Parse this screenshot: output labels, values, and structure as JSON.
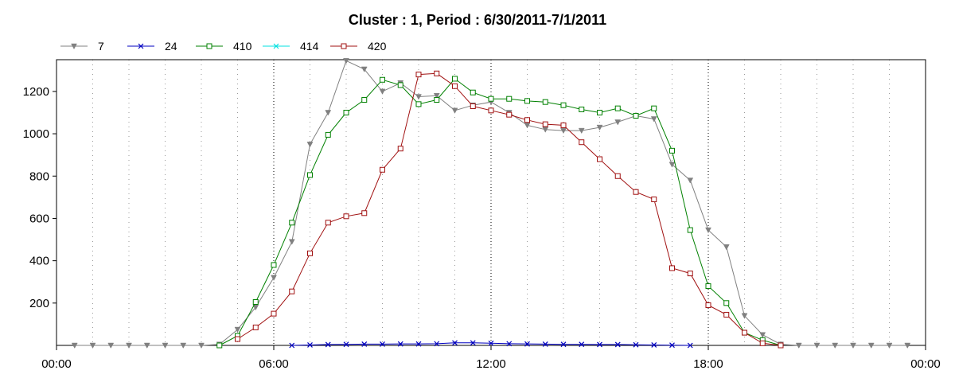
{
  "chart_data": {
    "type": "line",
    "title": "Cluster : 1, Period : 6/30/2011-7/1/2011",
    "xlabel": "",
    "ylabel": "",
    "xlim": [
      0,
      24
    ],
    "ylim": [
      0,
      1350
    ],
    "x_unit": "hours",
    "x_ticks": [
      {
        "value": 0,
        "label": "00:00"
      },
      {
        "value": 6,
        "label": "06:00"
      },
      {
        "value": 12,
        "label": "12:00"
      },
      {
        "value": 18,
        "label": "18:00"
      },
      {
        "value": 24,
        "label": "00:00"
      }
    ],
    "y_ticks": [
      200,
      400,
      600,
      800,
      1000,
      1200
    ],
    "grid": {
      "vertical_minor_dotted": true,
      "vertical_major_dotted": true,
      "horizontal": false
    },
    "legend_position": "top-left",
    "colors": {
      "7": "#808080",
      "24": "#0000c0",
      "410": "#008000",
      "414": "#00e0e0",
      "420": "#a01010"
    },
    "series": [
      {
        "name": "7",
        "marker": "triangle-down",
        "points": [
          [
            0.5,
            0
          ],
          [
            1.0,
            0
          ],
          [
            1.5,
            0
          ],
          [
            2.0,
            0
          ],
          [
            2.5,
            0
          ],
          [
            3.0,
            0
          ],
          [
            3.5,
            0
          ],
          [
            4.0,
            0
          ],
          [
            4.5,
            5
          ],
          [
            5.0,
            75
          ],
          [
            5.5,
            180
          ],
          [
            6.0,
            320
          ],
          [
            6.5,
            490
          ],
          [
            7.0,
            950
          ],
          [
            7.5,
            1100
          ],
          [
            8.0,
            1345
          ],
          [
            8.5,
            1305
          ],
          [
            9.0,
            1200
          ],
          [
            9.5,
            1240
          ],
          [
            10.0,
            1175
          ],
          [
            10.5,
            1180
          ],
          [
            11.0,
            1110
          ],
          [
            11.5,
            1135
          ],
          [
            12.0,
            1150
          ],
          [
            12.5,
            1100
          ],
          [
            13.0,
            1040
          ],
          [
            13.5,
            1020
          ],
          [
            14.0,
            1015
          ],
          [
            14.5,
            1015
          ],
          [
            15.0,
            1030
          ],
          [
            15.5,
            1055
          ],
          [
            16.0,
            1085
          ],
          [
            16.5,
            1070
          ],
          [
            17.0,
            855
          ],
          [
            17.5,
            780
          ],
          [
            18.0,
            545
          ],
          [
            18.5,
            465
          ],
          [
            19.0,
            140
          ],
          [
            19.5,
            50
          ],
          [
            20.0,
            5
          ],
          [
            20.5,
            0
          ],
          [
            21.0,
            0
          ],
          [
            21.5,
            0
          ],
          [
            22.0,
            0
          ],
          [
            22.5,
            0
          ],
          [
            23.0,
            0
          ],
          [
            23.5,
            0
          ]
        ]
      },
      {
        "name": "24",
        "marker": "x",
        "points": [
          [
            6.5,
            0
          ],
          [
            7.0,
            2
          ],
          [
            7.5,
            4
          ],
          [
            8.0,
            5
          ],
          [
            8.5,
            6
          ],
          [
            9.0,
            6
          ],
          [
            9.5,
            7
          ],
          [
            10.0,
            7
          ],
          [
            10.5,
            8
          ],
          [
            11.0,
            12
          ],
          [
            11.5,
            12
          ],
          [
            12.0,
            10
          ],
          [
            12.5,
            8
          ],
          [
            13.0,
            7
          ],
          [
            13.5,
            6
          ],
          [
            14.0,
            5
          ],
          [
            14.5,
            5
          ],
          [
            15.0,
            4
          ],
          [
            15.5,
            4
          ],
          [
            16.0,
            3
          ],
          [
            16.5,
            2
          ],
          [
            17.0,
            1
          ],
          [
            17.5,
            0
          ]
        ]
      },
      {
        "name": "410",
        "marker": "square",
        "points": [
          [
            4.5,
            0
          ],
          [
            5.0,
            45
          ],
          [
            5.5,
            205
          ],
          [
            6.0,
            380
          ],
          [
            6.5,
            580
          ],
          [
            7.0,
            805
          ],
          [
            7.5,
            995
          ],
          [
            8.0,
            1100
          ],
          [
            8.5,
            1160
          ],
          [
            9.0,
            1255
          ],
          [
            9.5,
            1230
          ],
          [
            10.0,
            1140
          ],
          [
            10.5,
            1160
          ],
          [
            11.0,
            1260
          ],
          [
            11.5,
            1195
          ],
          [
            12.0,
            1165
          ],
          [
            12.5,
            1165
          ],
          [
            13.0,
            1155
          ],
          [
            13.5,
            1150
          ],
          [
            14.0,
            1135
          ],
          [
            14.5,
            1115
          ],
          [
            15.0,
            1100
          ],
          [
            15.5,
            1120
          ],
          [
            16.0,
            1085
          ],
          [
            16.5,
            1120
          ],
          [
            17.0,
            920
          ],
          [
            17.5,
            545
          ],
          [
            18.0,
            280
          ],
          [
            18.5,
            200
          ],
          [
            19.0,
            60
          ],
          [
            19.5,
            25
          ],
          [
            20.0,
            0
          ]
        ]
      },
      {
        "name": "414",
        "marker": "x",
        "points": []
      },
      {
        "name": "420",
        "marker": "square",
        "points": [
          [
            5.0,
            30
          ],
          [
            5.5,
            85
          ],
          [
            6.0,
            150
          ],
          [
            6.5,
            255
          ],
          [
            7.0,
            435
          ],
          [
            7.5,
            580
          ],
          [
            8.0,
            610
          ],
          [
            8.5,
            625
          ],
          [
            9.0,
            830
          ],
          [
            9.5,
            930
          ],
          [
            10.0,
            1280
          ],
          [
            10.5,
            1285
          ],
          [
            11.0,
            1225
          ],
          [
            11.5,
            1130
          ],
          [
            12.0,
            1110
          ],
          [
            12.5,
            1090
          ],
          [
            13.0,
            1065
          ],
          [
            13.5,
            1045
          ],
          [
            14.0,
            1040
          ],
          [
            14.5,
            960
          ],
          [
            15.0,
            880
          ],
          [
            15.5,
            800
          ],
          [
            16.0,
            725
          ],
          [
            16.5,
            690
          ],
          [
            17.0,
            365
          ],
          [
            17.5,
            340
          ],
          [
            18.0,
            190
          ],
          [
            18.5,
            145
          ],
          [
            19.0,
            60
          ],
          [
            19.5,
            10
          ],
          [
            20.0,
            0
          ]
        ]
      }
    ]
  }
}
